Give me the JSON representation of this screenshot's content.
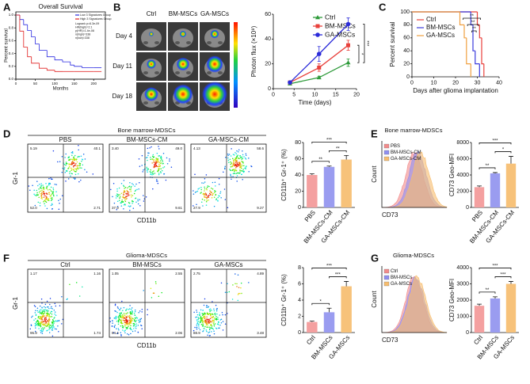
{
  "panel_labels": [
    "A",
    "B",
    "C",
    "D",
    "E",
    "F",
    "G"
  ],
  "imaging": {
    "columns": [
      "Ctrl",
      "BM-MSCs",
      "GA-MSCs"
    ],
    "rows": [
      "Day 4",
      "Day 11",
      "Day 18"
    ]
  },
  "flow": [
    {
      "title": "Bone marrow-MDSCs",
      "y_label": "Gr-1",
      "x_label": "CD11b",
      "groups": [
        {
          "name": "PBS",
          "quadrants": [
            "5.19",
            "40.1",
            "52.0",
            "2.71"
          ]
        },
        {
          "name": "BM-MSCs-CM",
          "quadrants": [
            "3.40",
            "49.0",
            "37.9",
            "9.61"
          ]
        },
        {
          "name": "GA-MSCs-CM",
          "quadrants": [
            "4.13",
            "58.6",
            "27.9",
            "9.27"
          ]
        }
      ]
    },
    {
      "title": "Glioma-MDSCs",
      "y_label": "Gr-1",
      "x_label": "CD11b",
      "groups": [
        {
          "name": "Ctrl",
          "quadrants": [
            "1.17",
            "1.16",
            "95.9",
            "1.74"
          ]
        },
        {
          "name": "BM-MSCs",
          "quadrants": [
            "1.05",
            "2.55",
            "94.4",
            "2.06"
          ]
        },
        {
          "name": "GA-MSCs",
          "quadrants": [
            "2.75",
            "4.89",
            "88.9",
            "3.48"
          ]
        }
      ]
    }
  ],
  "histograms": [
    {
      "title": "Bone marrow-MDSCs",
      "y_label": "Count",
      "x_label": "CD73",
      "legend": [
        {
          "name": "PBS",
          "color": "#f28b8b"
        },
        {
          "name": "BM-MSCs-CM",
          "color": "#8f8ff0"
        },
        {
          "name": "GA-MSCs-CM",
          "color": "#f7bd6e"
        }
      ]
    },
    {
      "title": "Glioma-MDSCs",
      "y_label": "Count",
      "x_label": "CD73",
      "legend": [
        {
          "name": "Ctrl",
          "color": "#f28b8b"
        },
        {
          "name": "BM-MSCs",
          "color": "#8f8ff0"
        },
        {
          "name": "GA-MSCs",
          "color": "#f7bd6e"
        }
      ]
    }
  ],
  "chart_data": [
    {
      "type": "step",
      "title": "Overall Survival",
      "x_label": "Months",
      "y_label": "Percent survival",
      "xlim": [
        0,
        230
      ],
      "xticks": [
        0,
        50,
        100,
        150,
        200
      ],
      "ylim": [
        0,
        1.05
      ],
      "yticks": [
        {
          "value": 0,
          "label": "0.0"
        },
        0.2,
        0.4,
        0.6,
        0.8,
        {
          "value": 1,
          "label": "1.0"
        }
      ],
      "series": [
        {
          "name": "Low 3 Signatures Group",
          "color": "#2a2ae0",
          "x": [
            0,
            10,
            20,
            30,
            40,
            50,
            60,
            80,
            100,
            120,
            140,
            150,
            170,
            200,
            220
          ],
          "values": [
            1,
            0.93,
            0.85,
            0.76,
            0.66,
            0.55,
            0.45,
            0.35,
            0.3,
            0.27,
            0.22,
            0.2,
            0.18,
            0.18,
            0.18
          ]
        },
        {
          "name": "High 3 Signatures Group",
          "color": "#e02020",
          "x": [
            0,
            10,
            20,
            30,
            40,
            60,
            80,
            100,
            120,
            150,
            170,
            200,
            220
          ],
          "values": [
            1,
            0.75,
            0.5,
            0.35,
            0.25,
            0.17,
            0.14,
            0.12,
            0.12,
            0.12,
            0.12,
            0.12,
            0.12
          ]
        }
      ],
      "annotations": [
        "Logrank p=6.3e-09",
        "HR(high)=2.1",
        "p(HR)=1.4e-08",
        "n(high)=338",
        "n(low)=338"
      ]
    },
    {
      "type": "line",
      "x_label": "Time (days)",
      "y_label": "Photon flux (×10⁸)",
      "x": [
        4,
        11,
        18
      ],
      "xlim": [
        0,
        20
      ],
      "xticks": [
        0,
        5,
        10,
        15,
        20
      ],
      "ylim": [
        0,
        60
      ],
      "yticks": [
        0,
        20,
        40,
        60
      ],
      "series": [
        {
          "name": "Ctrl",
          "color": "#2e9a3a",
          "marker": "triangle",
          "values": [
            4,
            9,
            21
          ],
          "errors": [
            0.5,
            1,
            3
          ]
        },
        {
          "name": "BM-MSCs",
          "color": "#e8413c",
          "marker": "square",
          "values": [
            5,
            17,
            35
          ],
          "errors": [
            1,
            3,
            4
          ]
        },
        {
          "name": "GA-MSCs",
          "color": "#2b2bd9",
          "marker": "circle",
          "values": [
            5,
            28,
            52
          ],
          "errors": [
            1,
            6,
            5
          ]
        }
      ],
      "annotations": [
        "*",
        "***"
      ]
    },
    {
      "type": "step",
      "x_label": "Days after glioma implantation",
      "y_label": "Percent survival",
      "xlim": [
        0,
        40
      ],
      "xticks": [
        0,
        10,
        20,
        30,
        40
      ],
      "ylim": [
        0,
        100
      ],
      "yticks": [
        0,
        20,
        40,
        60,
        80,
        100
      ],
      "series": [
        {
          "name": "Ctrl",
          "color": "#e8413c",
          "x": [
            0,
            30,
            31,
            32,
            33
          ],
          "values": [
            100,
            80,
            60,
            20,
            0
          ]
        },
        {
          "name": "BM-MSCs",
          "color": "#3b3bdc",
          "x": [
            0,
            27,
            28,
            29,
            31
          ],
          "values": [
            100,
            80,
            40,
            20,
            0
          ]
        },
        {
          "name": "GA-MSCs",
          "color": "#f0a040",
          "x": [
            0,
            22,
            24,
            25,
            27
          ],
          "values": [
            100,
            80,
            60,
            20,
            0
          ]
        }
      ],
      "annotations": [
        "**",
        "**",
        "**"
      ]
    },
    {
      "type": "bar",
      "y_label": "CD11b⁺ Gr-1⁺ (%)",
      "categories": [
        "PBS",
        "BM-MSCs-CM",
        "GA-MSCs-CM"
      ],
      "values": [
        40,
        50,
        59
      ],
      "errors": [
        1.5,
        1,
        5
      ],
      "colors": [
        "#f4a0a0",
        "#9a9cf0",
        "#f7c27a"
      ],
      "ylim": [
        0,
        80
      ],
      "yticks": [
        0,
        20,
        40,
        60,
        80
      ],
      "significance": [
        "**",
        "**",
        "***"
      ]
    },
    {
      "type": "bar",
      "y_label": "CD73 Geo-MFI",
      "categories": [
        "PBS",
        "BM-MSCs-CM",
        "GA-MSCs-CM"
      ],
      "values": [
        2500,
        4200,
        5400
      ],
      "errors": [
        150,
        100,
        900
      ],
      "colors": [
        "#f4a0a0",
        "#9a9cf0",
        "#f7c27a"
      ],
      "ylim": [
        0,
        8000
      ],
      "yticks": [
        0,
        2000,
        4000,
        6000,
        8000
      ],
      "significance": [
        "**",
        "*",
        "***"
      ]
    },
    {
      "type": "bar",
      "y_label": "CD11b⁺ Gr-1⁺ (%)",
      "categories": [
        "Ctrl",
        "BM-MSCs",
        "GA-MSCs"
      ],
      "values": [
        1.3,
        2.5,
        5.7
      ],
      "errors": [
        0.1,
        0.5,
        0.6
      ],
      "colors": [
        "#f4a0a0",
        "#9a9cf0",
        "#f7c27a"
      ],
      "ylim": [
        0,
        8
      ],
      "yticks": [
        0,
        2,
        4,
        6,
        8
      ],
      "significance": [
        "*",
        "***",
        "***"
      ]
    },
    {
      "type": "bar",
      "y_label": "CD73 Geo-MFI",
      "categories": [
        "Ctrl",
        "BM-MSCs",
        "GA-MSCs"
      ],
      "values": [
        1650,
        2100,
        3000
      ],
      "errors": [
        100,
        100,
        150
      ],
      "colors": [
        "#f4a0a0",
        "#9a9cf0",
        "#f7c27a"
      ],
      "ylim": [
        0,
        4000
      ],
      "yticks": [
        0,
        1000,
        2000,
        3000,
        4000
      ],
      "significance": [
        "**",
        "***",
        "***"
      ]
    }
  ]
}
